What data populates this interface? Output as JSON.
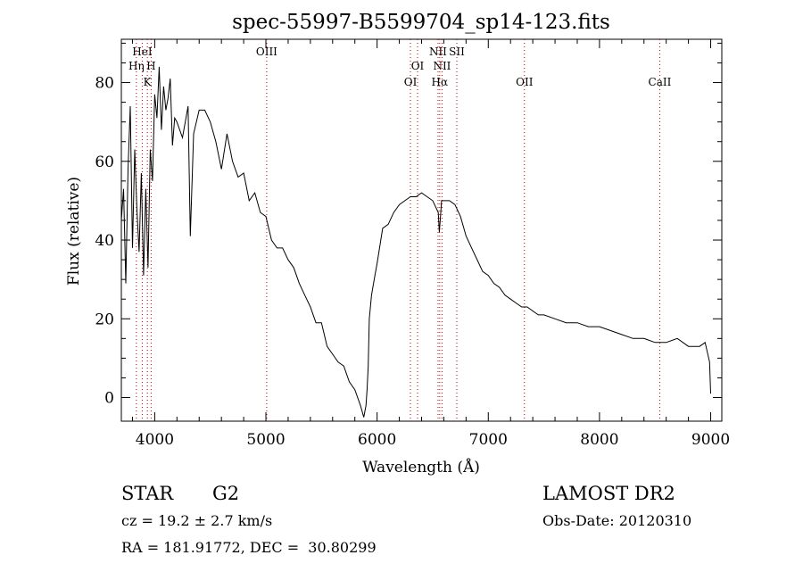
{
  "chart_data": {
    "type": "line",
    "title": "spec-55997-B5599704_sp14-123.fits",
    "xlabel": "Wavelength (Å)",
    "ylabel": "Flux (relative)",
    "xlim": [
      3700,
      9100
    ],
    "ylim": [
      -6,
      91
    ],
    "xticks": [
      4000,
      5000,
      6000,
      7000,
      8000,
      9000
    ],
    "yticks": [
      0,
      20,
      40,
      60,
      80
    ],
    "grid": false,
    "series": [
      {
        "x": [
          3700,
          3720,
          3740,
          3760,
          3780,
          3800,
          3820,
          3840,
          3860,
          3880,
          3900,
          3920,
          3940,
          3960,
          3980,
          4000,
          4020,
          4040,
          4060,
          4080,
          4100,
          4120,
          4140,
          4160,
          4180,
          4200,
          4250,
          4300,
          4320,
          4350,
          4400,
          4450,
          4500,
          4550,
          4600,
          4650,
          4700,
          4750,
          4800,
          4850,
          4900,
          4950,
          5000,
          5050,
          5100,
          5150,
          5200,
          5250,
          5300,
          5350,
          5400,
          5450,
          5500,
          5550,
          5600,
          5650,
          5700,
          5750,
          5800,
          5850,
          5880,
          5900,
          5910,
          5920,
          5930,
          5950,
          5980,
          6000,
          6050,
          6100,
          6150,
          6200,
          6250,
          6300,
          6350,
          6400,
          6450,
          6500,
          6550,
          6560,
          6570,
          6580,
          6600,
          6650,
          6700,
          6750,
          6800,
          6850,
          6900,
          6950,
          7000,
          7050,
          7100,
          7150,
          7200,
          7250,
          7300,
          7350,
          7400,
          7450,
          7500,
          7600,
          7700,
          7800,
          7900,
          8000,
          8100,
          8200,
          8300,
          8400,
          8500,
          8600,
          8700,
          8800,
          8900,
          8950,
          8990,
          9000
        ],
        "y": [
          45,
          53,
          29,
          58,
          74,
          38,
          63,
          48,
          37,
          57,
          31,
          53,
          33,
          63,
          55,
          77,
          71,
          84,
          68,
          79,
          73,
          76,
          81,
          64,
          71,
          70,
          66,
          74,
          41,
          67,
          73,
          73,
          70,
          65,
          58,
          67,
          60,
          56,
          57,
          50,
          52,
          47,
          46,
          40,
          38,
          38,
          35,
          33,
          29,
          26,
          23,
          19,
          19,
          13,
          11,
          9,
          8,
          4,
          2,
          -2,
          -5,
          -2,
          2,
          8,
          20,
          26,
          31,
          34,
          43,
          44,
          47,
          49,
          50,
          51,
          51,
          52,
          51,
          50,
          47,
          42,
          46,
          50,
          50,
          50,
          49,
          46,
          41,
          38,
          35,
          32,
          31,
          29,
          28,
          26,
          25,
          24,
          23,
          23,
          22,
          21,
          21,
          20,
          19,
          19,
          18,
          18,
          17,
          16,
          15,
          15,
          14,
          14,
          15,
          13,
          13,
          14,
          9,
          1
        ]
      }
    ],
    "lines": [
      {
        "label": "HeI",
        "x": 3888,
        "row": 1
      },
      {
        "label": "Hη",
        "x": 3835,
        "row": 2
      },
      {
        "label": "H",
        "x": 3968,
        "row": 2
      },
      {
        "label": "K",
        "x": 3934,
        "row": 3
      },
      {
        "label": "OIII",
        "x": 5007,
        "row": 1
      },
      {
        "label": "NII",
        "x": 6548,
        "row": 1
      },
      {
        "label": "SII",
        "x": 6717,
        "row": 1
      },
      {
        "label": "OI",
        "x": 6364,
        "row": 2
      },
      {
        "label": "NII",
        "x": 6584,
        "row": 2
      },
      {
        "label": "OI",
        "x": 6300,
        "row": 3
      },
      {
        "label": "Hα",
        "x": 6563,
        "row": 3
      },
      {
        "label": "OII",
        "x": 7325,
        "row": 3
      },
      {
        "label": "CaII",
        "x": 8542,
        "row": 3
      }
    ]
  },
  "info": {
    "class": "STAR",
    "subclass": "G2",
    "survey": "LAMOST DR2",
    "cz": "cz = 19.2 ± 2.7 km/s",
    "obsdate": "Obs-Date: 20120310",
    "coords": "RA = 181.91772, DEC =  30.80299"
  }
}
